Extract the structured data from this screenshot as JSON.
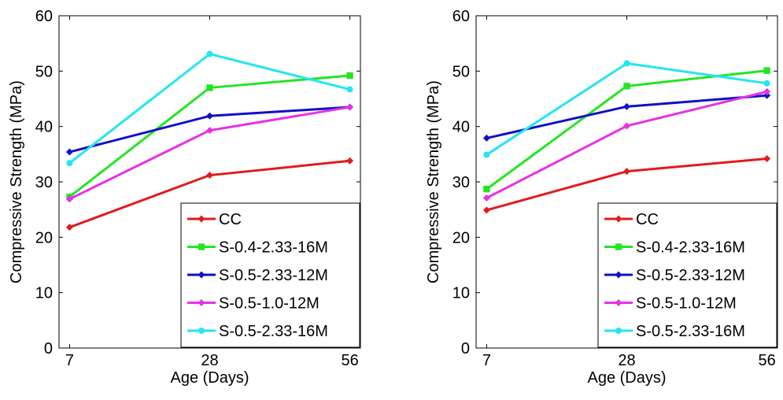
{
  "colors": {
    "CC": "#e31a1c",
    "S-0.4-2.33-16M": "#22e622",
    "S-0.5-2.33-12M": "#1010c8",
    "S-0.5-1.0-12M": "#e632e6",
    "S-0.5-2.33-16M": "#22e6f0"
  },
  "chart_data": [
    {
      "type": "line",
      "title": "",
      "xlabel": "Age (Days)",
      "ylabel": "Compressive  Strength (MPa)",
      "x": [
        7,
        28,
        56
      ],
      "x_tick_labels": [
        "7",
        "28",
        "56"
      ],
      "ylim": [
        0,
        60
      ],
      "y_ticks": [
        0,
        10,
        20,
        30,
        40,
        50,
        60
      ],
      "grid": false,
      "legend_position": "bottom-right",
      "series": [
        {
          "name": "CC",
          "marker": "diamond",
          "values": [
            21.8,
            31.2,
            33.8
          ]
        },
        {
          "name": "S-0.4-2.33-16M",
          "marker": "square",
          "values": [
            27.3,
            47.0,
            49.2
          ]
        },
        {
          "name": "S-0.5-2.33-12M",
          "marker": "diamond",
          "values": [
            35.4,
            41.9,
            43.5
          ]
        },
        {
          "name": "S-0.5-1.0-12M",
          "marker": "diamond",
          "values": [
            26.9,
            39.3,
            43.5
          ]
        },
        {
          "name": "S-0.5-2.33-16M",
          "marker": "circle",
          "values": [
            33.4,
            53.1,
            46.7
          ]
        }
      ]
    },
    {
      "type": "line",
      "title": "",
      "xlabel": "Age (Days)",
      "ylabel": "Compressive  Strength (MPa)",
      "x": [
        7,
        28,
        56
      ],
      "x_tick_labels": [
        "7",
        "28",
        "56"
      ],
      "ylim": [
        0,
        60
      ],
      "y_ticks": [
        0,
        10,
        20,
        30,
        40,
        50,
        60
      ],
      "grid": false,
      "legend_position": "bottom-right",
      "series": [
        {
          "name": "CC",
          "marker": "diamond",
          "values": [
            24.9,
            31.9,
            34.2
          ]
        },
        {
          "name": "S-0.4-2.33-16M",
          "marker": "square",
          "values": [
            28.7,
            47.3,
            50.1
          ]
        },
        {
          "name": "S-0.5-2.33-12M",
          "marker": "diamond",
          "values": [
            37.9,
            43.6,
            45.6
          ]
        },
        {
          "name": "S-0.5-1.0-12M",
          "marker": "diamond",
          "values": [
            27.1,
            40.1,
            46.3
          ]
        },
        {
          "name": "S-0.5-2.33-16M",
          "marker": "circle",
          "values": [
            34.9,
            51.4,
            47.8
          ]
        }
      ]
    }
  ]
}
